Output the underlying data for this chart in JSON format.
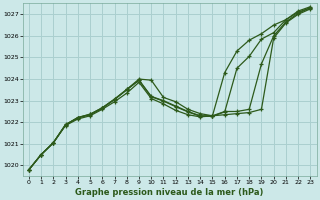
{
  "title": "Graphe pression niveau de la mer (hPa)",
  "bg_color": "#cce8e8",
  "grid_color": "#aacfcf",
  "line_color": "#2d5a1b",
  "xlim": [
    -0.5,
    23.5
  ],
  "ylim": [
    1019.5,
    1027.5
  ],
  "xticks": [
    0,
    1,
    2,
    3,
    4,
    5,
    6,
    7,
    8,
    9,
    10,
    11,
    12,
    13,
    14,
    15,
    16,
    17,
    18,
    19,
    20,
    21,
    22,
    23
  ],
  "yticks": [
    1020,
    1021,
    1022,
    1023,
    1024,
    1025,
    1026,
    1027
  ],
  "series1_x": [
    0,
    1,
    2,
    3,
    4,
    5,
    6,
    7,
    8,
    9,
    10,
    11,
    12,
    13,
    14,
    15,
    16,
    17,
    18,
    19,
    20,
    21,
    22,
    23
  ],
  "series1_y": [
    1019.8,
    1020.5,
    1021.05,
    1021.85,
    1022.15,
    1022.3,
    1022.6,
    1022.95,
    1023.35,
    1023.85,
    1023.1,
    1022.85,
    1022.55,
    1022.35,
    1022.25,
    1022.3,
    1022.35,
    1022.4,
    1022.45,
    1022.6,
    1025.9,
    1026.6,
    1027.0,
    1027.25
  ],
  "series2_x": [
    0,
    1,
    2,
    3,
    4,
    5,
    6,
    7,
    8,
    9,
    10,
    11,
    12,
    13,
    14,
    15,
    16,
    17,
    18,
    19,
    20,
    21,
    22,
    23
  ],
  "series2_y": [
    1019.8,
    1020.5,
    1021.05,
    1021.9,
    1022.2,
    1022.35,
    1022.65,
    1023.05,
    1023.5,
    1023.95,
    1023.2,
    1023.0,
    1022.75,
    1022.5,
    1022.3,
    1022.3,
    1022.5,
    1022.5,
    1022.6,
    1024.7,
    1026.0,
    1026.65,
    1027.05,
    1027.3
  ],
  "series3_x": [
    0,
    1,
    2,
    3,
    4,
    5,
    6,
    7,
    8,
    9,
    10,
    11,
    12,
    13,
    14,
    15,
    16,
    17,
    18,
    19,
    20,
    21,
    22,
    23
  ],
  "series3_y": [
    1019.8,
    1020.5,
    1021.05,
    1021.88,
    1022.22,
    1022.37,
    1022.67,
    1023.07,
    1023.52,
    1024.0,
    1023.95,
    1023.15,
    1022.95,
    1022.6,
    1022.4,
    1022.3,
    1024.3,
    1025.3,
    1025.8,
    1026.1,
    1026.5,
    1026.75,
    1027.1,
    1027.3
  ],
  "series4_x": [
    0,
    1,
    2,
    3,
    4,
    5,
    6,
    7,
    8,
    9,
    10,
    11,
    12,
    13,
    14,
    15,
    16,
    17,
    18,
    19,
    20,
    21,
    22,
    23
  ],
  "series4_y": [
    1019.8,
    1020.5,
    1021.05,
    1021.88,
    1022.22,
    1022.37,
    1022.67,
    1023.07,
    1023.52,
    1023.95,
    1023.18,
    1022.98,
    1022.72,
    1022.48,
    1022.28,
    1022.28,
    1022.48,
    1024.5,
    1025.05,
    1025.85,
    1026.15,
    1026.75,
    1027.15,
    1027.35
  ]
}
